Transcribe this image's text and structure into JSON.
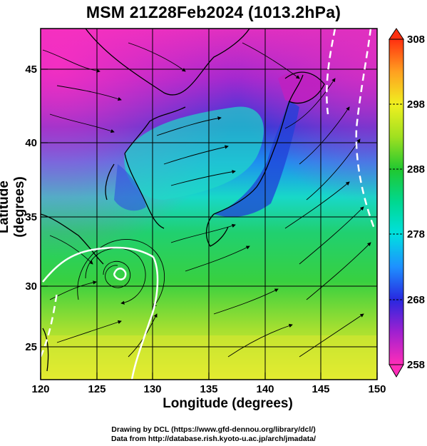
{
  "map": {
    "title": "MSM 21Z28Feb2024 (1013.2hPa)",
    "xlabel": "Longitude (degrees)",
    "ylabel": "Latitude  (degrees)",
    "x_ticks": [
      "120",
      "125",
      "130",
      "135",
      "140",
      "145",
      "150"
    ],
    "y_ticks": [
      "25",
      "30",
      "35",
      "40",
      "45"
    ],
    "colorbar_ticks": [
      "308",
      "298",
      "288",
      "278",
      "268",
      "258"
    ],
    "lon_range": [
      120,
      150
    ],
    "lat_range": [
      22.4,
      47.6
    ],
    "colorbar_range": [
      258,
      308
    ],
    "credit_line1": "Drawing by DCL (https://www.gfd-dennou.org/library/dcl/)",
    "credit_line2": "Data from http://database.rish.kyoto-u.ac.jp/arch/jmadata/"
  }
}
